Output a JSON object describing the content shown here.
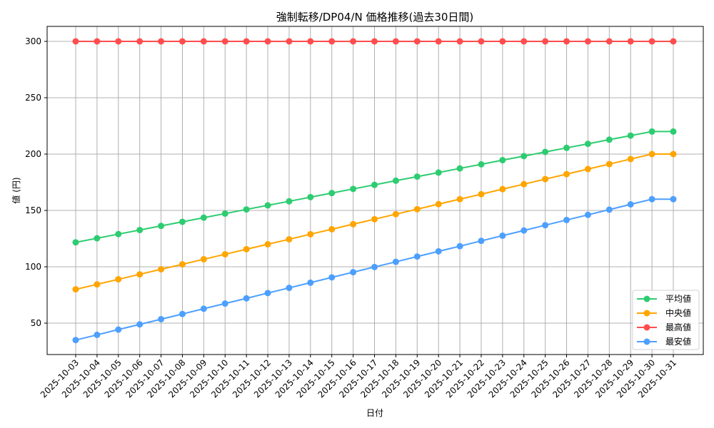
{
  "chart_data": {
    "type": "line",
    "title": "強制転移/DP04/N 価格推移(過去30日間)",
    "xlabel": "日付",
    "ylabel": "値 (円)",
    "ylim": [
      21.5,
      313.5
    ],
    "yticks": [
      50,
      100,
      150,
      200,
      250,
      300
    ],
    "grid": true,
    "legend_position": "lower right",
    "x": [
      "2025-10-03",
      "2025-10-04",
      "2025-10-05",
      "2025-10-06",
      "2025-10-07",
      "2025-10-08",
      "2025-10-09",
      "2025-10-10",
      "2025-10-11",
      "2025-10-12",
      "2025-10-13",
      "2025-10-14",
      "2025-10-15",
      "2025-10-16",
      "2025-10-17",
      "2025-10-18",
      "2025-10-19",
      "2025-10-20",
      "2025-10-21",
      "2025-10-22",
      "2025-10-23",
      "2025-10-24",
      "2025-10-25",
      "2025-10-26",
      "2025-10-27",
      "2025-10-28",
      "2025-10-29",
      "2025-10-30",
      "2025-10-31"
    ],
    "series": [
      {
        "name": "平均値",
        "color": "#2ecc71",
        "values": [
          121.7,
          125.3,
          129.0,
          132.6,
          136.3,
          139.9,
          143.6,
          147.2,
          150.9,
          154.5,
          158.1,
          161.8,
          165.4,
          169.1,
          172.7,
          176.4,
          180.0,
          183.6,
          187.3,
          190.9,
          194.6,
          198.2,
          201.9,
          205.5,
          209.1,
          212.8,
          216.4,
          220.0,
          220.0
        ]
      },
      {
        "name": "中央値",
        "color": "#ffa500",
        "values": [
          80.0,
          84.4,
          88.9,
          93.3,
          97.8,
          102.2,
          106.7,
          111.1,
          115.6,
          120.0,
          124.4,
          128.9,
          133.3,
          137.8,
          142.2,
          146.7,
          151.1,
          155.6,
          160.0,
          164.4,
          168.9,
          173.3,
          177.8,
          182.2,
          186.7,
          191.1,
          195.6,
          200.0,
          200.0
        ]
      },
      {
        "name": "最高値",
        "color": "#ff4d4d",
        "values": [
          300,
          300,
          300,
          300,
          300,
          300,
          300,
          300,
          300,
          300,
          300,
          300,
          300,
          300,
          300,
          300,
          300,
          300,
          300,
          300,
          300,
          300,
          300,
          300,
          300,
          300,
          300,
          300,
          300
        ]
      },
      {
        "name": "最安値",
        "color": "#4d9fff",
        "values": [
          35.0,
          39.6,
          44.3,
          48.9,
          53.5,
          58.1,
          62.8,
          67.4,
          72.0,
          76.7,
          81.3,
          85.9,
          90.6,
          95.2,
          99.8,
          104.4,
          109.1,
          113.7,
          118.3,
          123.0,
          127.6,
          132.2,
          136.9,
          141.5,
          146.1,
          150.7,
          155.4,
          160.0,
          160.0
        ]
      }
    ]
  }
}
